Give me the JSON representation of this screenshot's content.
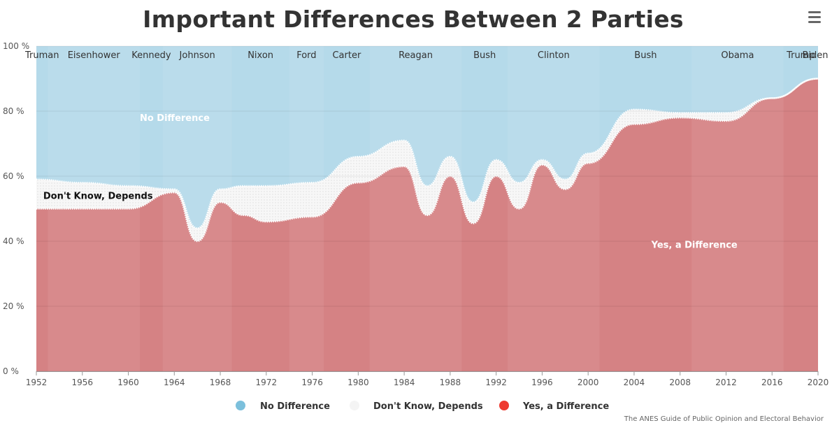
{
  "chart_data": {
    "type": "area",
    "stacking": "percent",
    "title": "Important Differences Between 2 Parties",
    "x_range": [
      1952,
      2020
    ],
    "ylim": [
      0,
      100
    ],
    "x_ticks": [
      "1952",
      "1956",
      "1960",
      "1964",
      "1968",
      "1972",
      "1976",
      "1980",
      "1984",
      "1988",
      "1992",
      "1996",
      "2000",
      "2004",
      "2008",
      "2012",
      "2016",
      "2020"
    ],
    "y_ticks": [
      "0 %",
      "20 %",
      "40 %",
      "60 %",
      "80 %",
      "100 %"
    ],
    "x": [
      1952,
      1956,
      1960,
      1964,
      1966,
      1968,
      1970,
      1972,
      1976,
      1980,
      1984,
      1986,
      1988,
      1990,
      1992,
      1994,
      1996,
      1998,
      2000,
      2004,
      2008,
      2012,
      2016,
      2020
    ],
    "series": [
      {
        "name": "No Difference",
        "color": "#7cc0dc",
        "values": [
          41,
          42,
          43,
          44,
          56,
          44,
          43,
          43,
          42,
          34,
          29,
          43,
          34,
          48,
          35,
          42,
          35,
          41,
          33,
          19.5,
          20.5,
          20.5,
          16,
          10
        ]
      },
      {
        "name": "Don't Know, Depends",
        "color": "#f5f5f5",
        "values": [
          9,
          8,
          7,
          1,
          4,
          4,
          9,
          11,
          10.5,
          8,
          8,
          9,
          6,
          6.5,
          5,
          8,
          1.5,
          3,
          3,
          4.5,
          1.5,
          2.5,
          0,
          0
        ]
      },
      {
        "name": "Yes, a Difference",
        "color": "#ee3a30",
        "values": [
          50,
          50,
          50,
          55,
          40,
          52,
          48,
          46,
          47.5,
          58,
          63,
          48,
          60,
          45.5,
          60,
          50,
          63.5,
          56,
          64,
          76,
          78,
          77,
          84,
          90
        ]
      }
    ],
    "area_labels": [
      {
        "text": "No Difference",
        "x": 1961,
        "y": 77
      },
      {
        "text": "Don't Know, Depends",
        "x": 1952.6,
        "y": 53
      },
      {
        "text": "Yes, a Difference",
        "x": 2005.5,
        "y": 38
      }
    ],
    "presidencies": [
      {
        "name": "Truman",
        "start": 1952,
        "end": 1953
      },
      {
        "name": "Eisenhower",
        "start": 1953,
        "end": 1961
      },
      {
        "name": "Kennedy",
        "start": 1961,
        "end": 1963
      },
      {
        "name": "Johnson",
        "start": 1963,
        "end": 1969
      },
      {
        "name": "Nixon",
        "start": 1969,
        "end": 1974
      },
      {
        "name": "Ford",
        "start": 1974,
        "end": 1977
      },
      {
        "name": "Carter",
        "start": 1977,
        "end": 1981
      },
      {
        "name": "Reagan",
        "start": 1981,
        "end": 1989
      },
      {
        "name": "Bush",
        "start": 1989,
        "end": 1993
      },
      {
        "name": "Clinton",
        "start": 1993,
        "end": 2001
      },
      {
        "name": "Bush",
        "start": 2001,
        "end": 2009
      },
      {
        "name": "Obama",
        "start": 2009,
        "end": 2017
      },
      {
        "name": "Trump",
        "start": 2017,
        "end": 2020
      },
      {
        "name": "Biden",
        "start": 2020,
        "end": 2020
      }
    ],
    "legend": {
      "placement": "bottom"
    }
  },
  "credit": "The ANES Guide of Public Opinion and Electoral Behavior",
  "menu": {
    "icon": "hamburger-menu-icon"
  }
}
